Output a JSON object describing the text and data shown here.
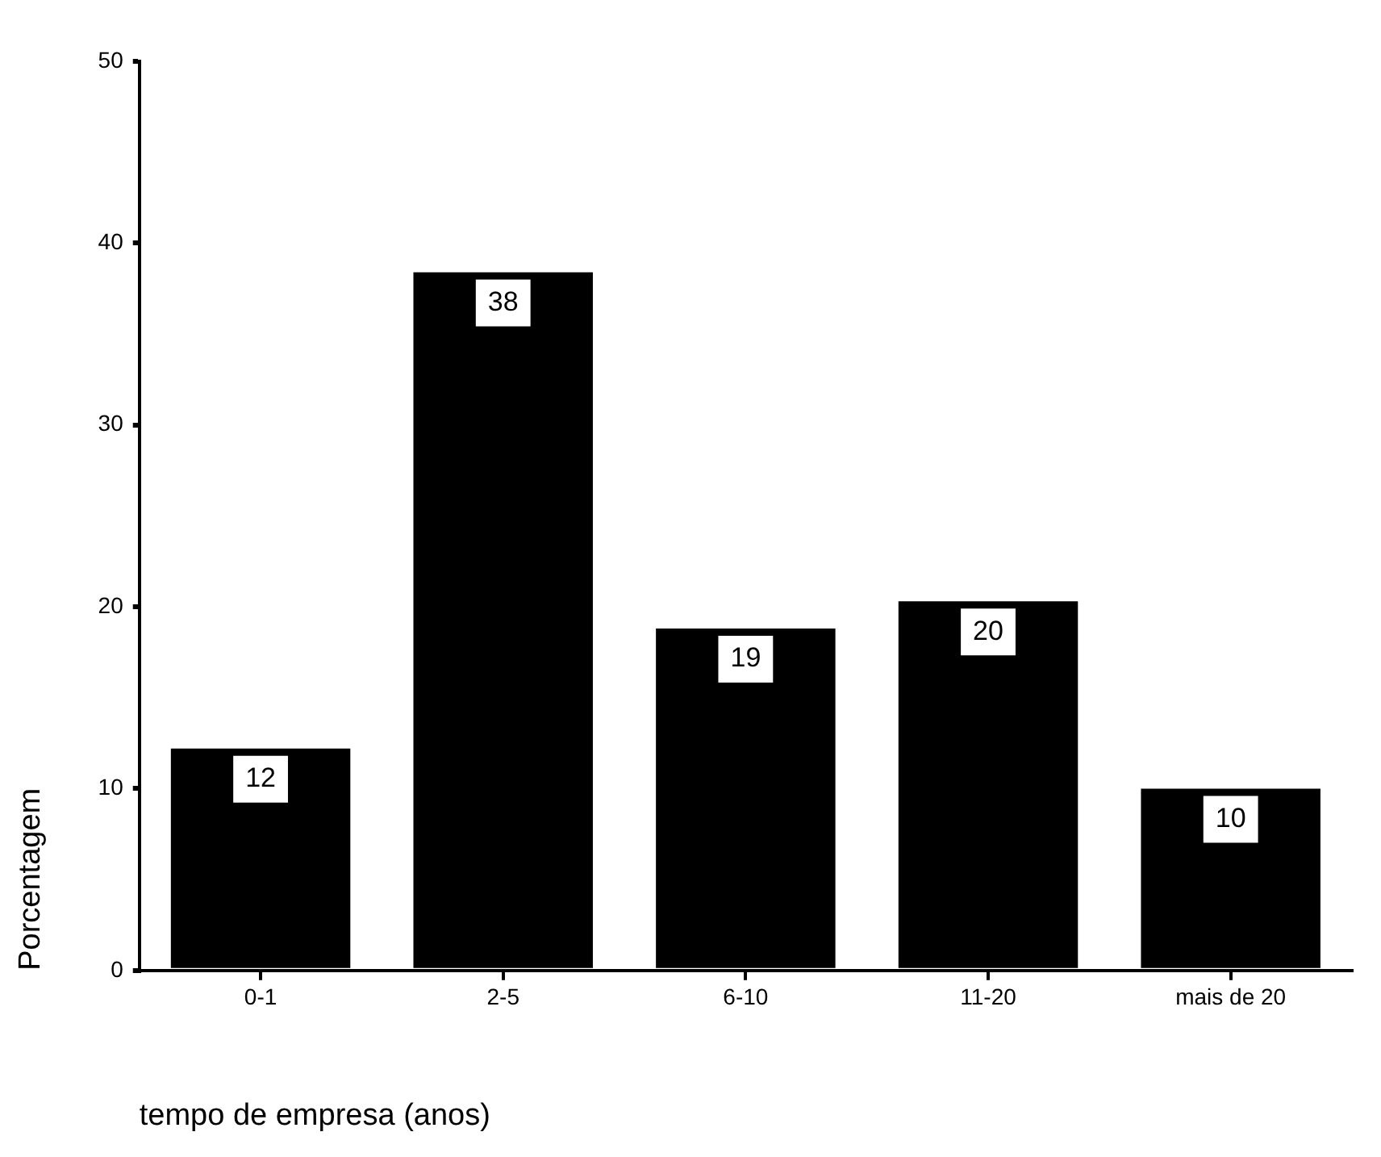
{
  "chart_data": {
    "type": "bar",
    "xlabel": "tempo de empresa (anos)",
    "ylabel": "Porcentagem",
    "categories": [
      "0-1",
      "2-5",
      "6-10",
      "11-20",
      "mais de 20"
    ],
    "values": [
      12.2,
      38.4,
      18.8,
      20.3,
      10.0
    ],
    "value_labels": [
      "12",
      "38",
      "19",
      "20",
      "10"
    ],
    "color": "#000000",
    "ylim": [
      0,
      50
    ],
    "yticks": [
      0,
      10,
      20,
      30,
      40,
      50
    ],
    "grid": false,
    "legend": false
  }
}
